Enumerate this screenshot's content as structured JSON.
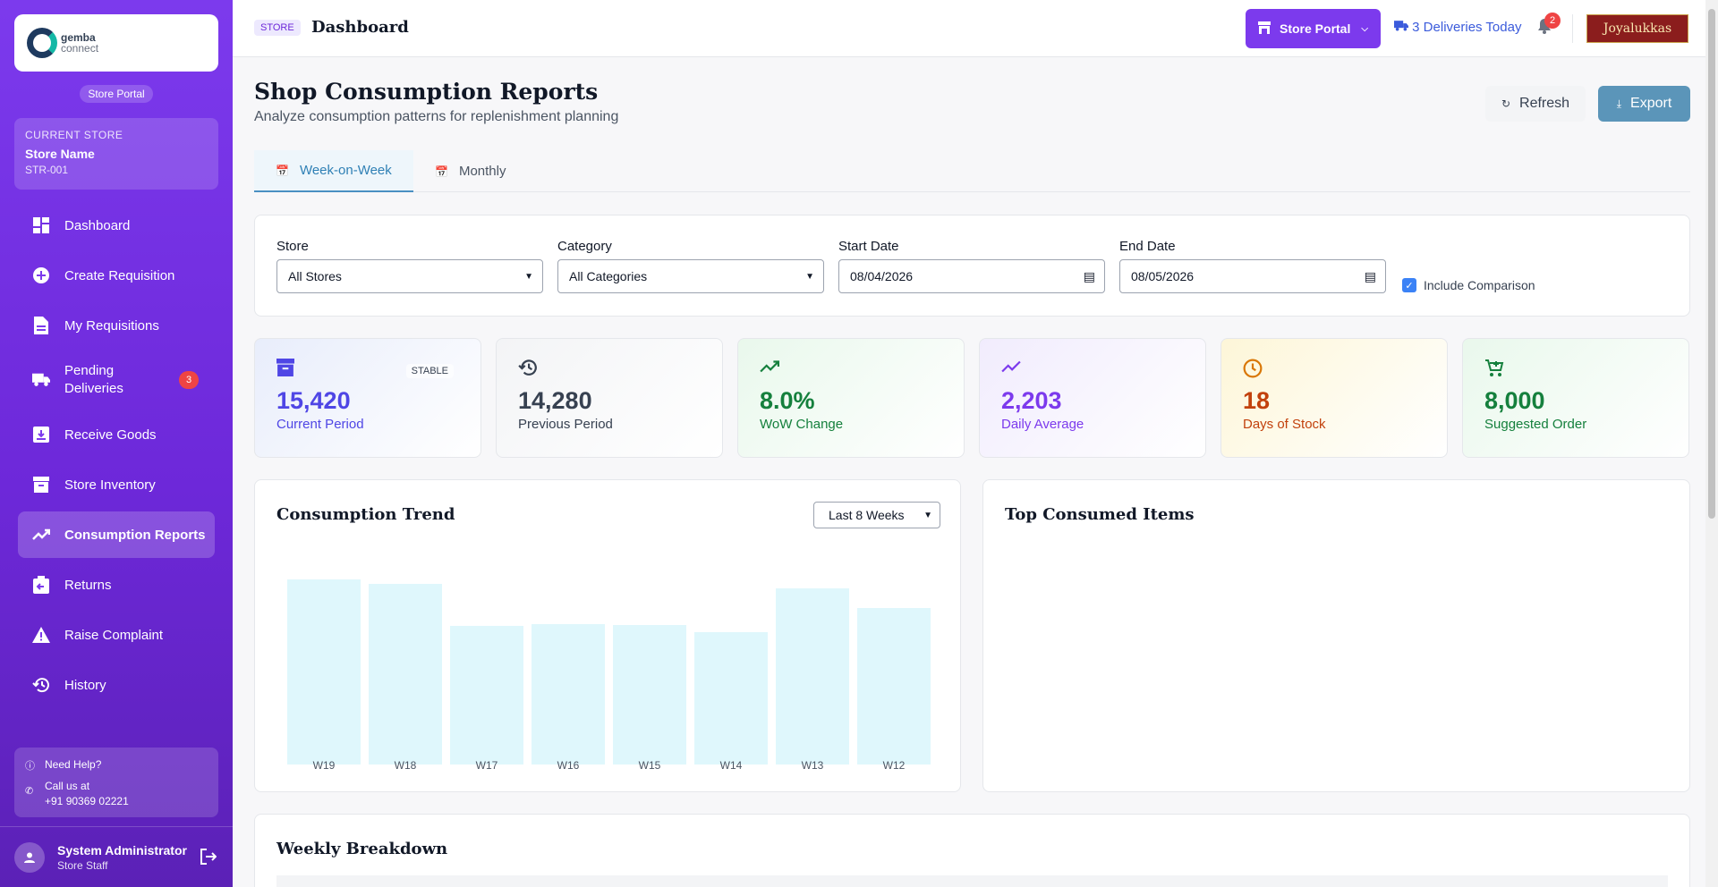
{
  "sidebar": {
    "logo": {
      "line1": "gemba",
      "line2": "connect"
    },
    "portal_label": "Store Portal",
    "current_store": {
      "label": "CURRENT STORE",
      "name": "Store Name",
      "id": "STR-001"
    },
    "items": [
      {
        "label": "Dashboard",
        "icon": "dashboard-icon"
      },
      {
        "label": "Create Requisition",
        "icon": "plus-circle-icon"
      },
      {
        "label": "My Requisitions",
        "icon": "document-icon"
      },
      {
        "label": "Pending Deliveries",
        "icon": "truck-icon",
        "badge": "3"
      },
      {
        "label": "Receive Goods",
        "icon": "receive-box-icon"
      },
      {
        "label": "Store Inventory",
        "icon": "archive-icon"
      },
      {
        "label": "Consumption Reports",
        "icon": "trend-icon",
        "active": true
      },
      {
        "label": "Returns",
        "icon": "return-box-icon"
      },
      {
        "label": "Raise Complaint",
        "icon": "warning-icon"
      },
      {
        "label": "History",
        "icon": "history-icon"
      }
    ],
    "help": {
      "title": "Need Help?",
      "call_label": "Call us at",
      "phone": "+91 90369 02221"
    },
    "user": {
      "name": "System Administrator",
      "role": "Store Staff"
    }
  },
  "topbar": {
    "tag": "STORE",
    "title": "Dashboard",
    "portal_button": "Store Portal",
    "deliveries": "3 Deliveries Today",
    "notification_count": "2",
    "brand": "Joyalukkas"
  },
  "page": {
    "title": "Shop Consumption Reports",
    "subtitle": "Analyze consumption patterns for replenishment planning",
    "refresh": "Refresh",
    "export": "Export",
    "tabs": [
      {
        "label": "Week-on-Week",
        "active": true
      },
      {
        "label": "Monthly"
      }
    ]
  },
  "filters": {
    "store": {
      "label": "Store",
      "value": "All Stores"
    },
    "category": {
      "label": "Category",
      "value": "All Categories"
    },
    "start": {
      "label": "Start Date",
      "value": "08/04/2026"
    },
    "end": {
      "label": "End Date",
      "value": "08/05/2026"
    },
    "include_comparison": {
      "label": "Include Comparison",
      "checked": true
    }
  },
  "stats": [
    {
      "value": "15,420",
      "label": "Current Period",
      "tag": "STABLE",
      "icon": "archive-icon",
      "color": "#4f46e5",
      "bg": "#e8edfb"
    },
    {
      "value": "14,280",
      "label": "Previous Period",
      "icon": "history-icon",
      "color": "#374151",
      "bg": "#f3f4f6"
    },
    {
      "value": "8.0%",
      "label": "WoW Change",
      "icon": "trend-up-icon",
      "color": "#15803d",
      "bg": "#e9f8ec"
    },
    {
      "value": "2,203",
      "label": "Daily Average",
      "icon": "trend-icon",
      "color": "#7c3aed",
      "bg": "#f1ecfd"
    },
    {
      "value": "18",
      "label": "Days of Stock",
      "icon": "clock-icon",
      "color": "#c2410c",
      "bg": "#fdf6d8"
    },
    {
      "value": "8,000",
      "label": "Suggested Order",
      "icon": "cart-icon",
      "color": "#15803d",
      "bg": "#e9f8ec"
    }
  ],
  "trend": {
    "title": "Consumption Trend",
    "range": "Last 8 Weeks"
  },
  "chart_data": {
    "type": "bar",
    "categories": [
      "W19",
      "W18",
      "W17",
      "W16",
      "W15",
      "W14",
      "W13",
      "W12"
    ],
    "values": [
      2200,
      2140,
      1650,
      1670,
      1660,
      1570,
      2090,
      1860
    ],
    "ylim": [
      0,
      2400
    ]
  },
  "top_items": {
    "title": "Top Consumed Items"
  },
  "breakdown": {
    "title": "Weekly Breakdown"
  }
}
